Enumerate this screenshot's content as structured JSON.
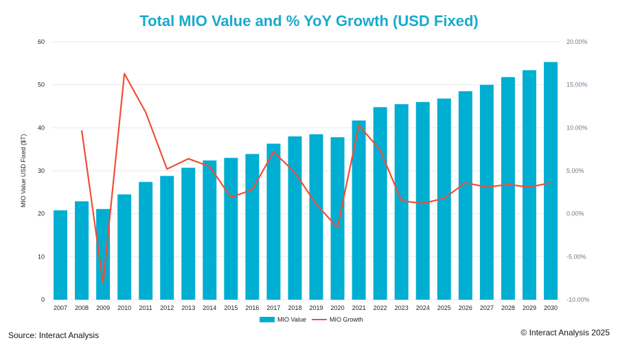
{
  "chart_data": {
    "type": "bar+line",
    "title": "Total MIO Value and % YoY Growth (USD Fixed)",
    "ylabel": "MIO Value USD Fixed ($T)",
    "y2label": "",
    "categories": [
      "2007",
      "2008",
      "2009",
      "2010",
      "2011",
      "2012",
      "2013",
      "2014",
      "2015",
      "2016",
      "2017",
      "2018",
      "2019",
      "2020",
      "2021",
      "2022",
      "2023",
      "2024",
      "2025",
      "2026",
      "2027",
      "2028",
      "2029",
      "2030"
    ],
    "ylim": [
      0,
      60
    ],
    "yticks": [
      "0",
      "10",
      "20",
      "30",
      "40",
      "50",
      "60"
    ],
    "y2lim": [
      -10,
      20
    ],
    "y2ticks": [
      "-10.00%",
      "-5.00%",
      "0.00%",
      "5.00%",
      "10.00%",
      "15.00%",
      "20.00%"
    ],
    "grid": true,
    "legend_position": "bottom",
    "series": [
      {
        "name": "MIO Value",
        "type": "bar",
        "axis": "left",
        "color": "#00aed2",
        "values": [
          20.8,
          22.9,
          21.1,
          24.5,
          27.4,
          28.8,
          30.7,
          32.4,
          33.0,
          33.9,
          36.3,
          38.0,
          38.5,
          37.8,
          41.7,
          44.8,
          45.5,
          46.0,
          46.8,
          48.5,
          50.0,
          51.8,
          53.4,
          55.3
        ]
      },
      {
        "name": "MIO Growth",
        "type": "line",
        "axis": "right",
        "unit": "%",
        "color": "#f04e37",
        "values": [
          null,
          9.7,
          -8.1,
          16.3,
          11.8,
          5.2,
          6.4,
          5.5,
          1.9,
          2.8,
          7.2,
          4.8,
          1.1,
          -1.6,
          10.3,
          7.4,
          1.5,
          1.2,
          1.8,
          3.6,
          3.1,
          3.4,
          3.1,
          3.6
        ]
      }
    ]
  },
  "footer": {
    "source": "Source: Interact Analysis",
    "copyright": "© Interact Analysis 2025"
  }
}
